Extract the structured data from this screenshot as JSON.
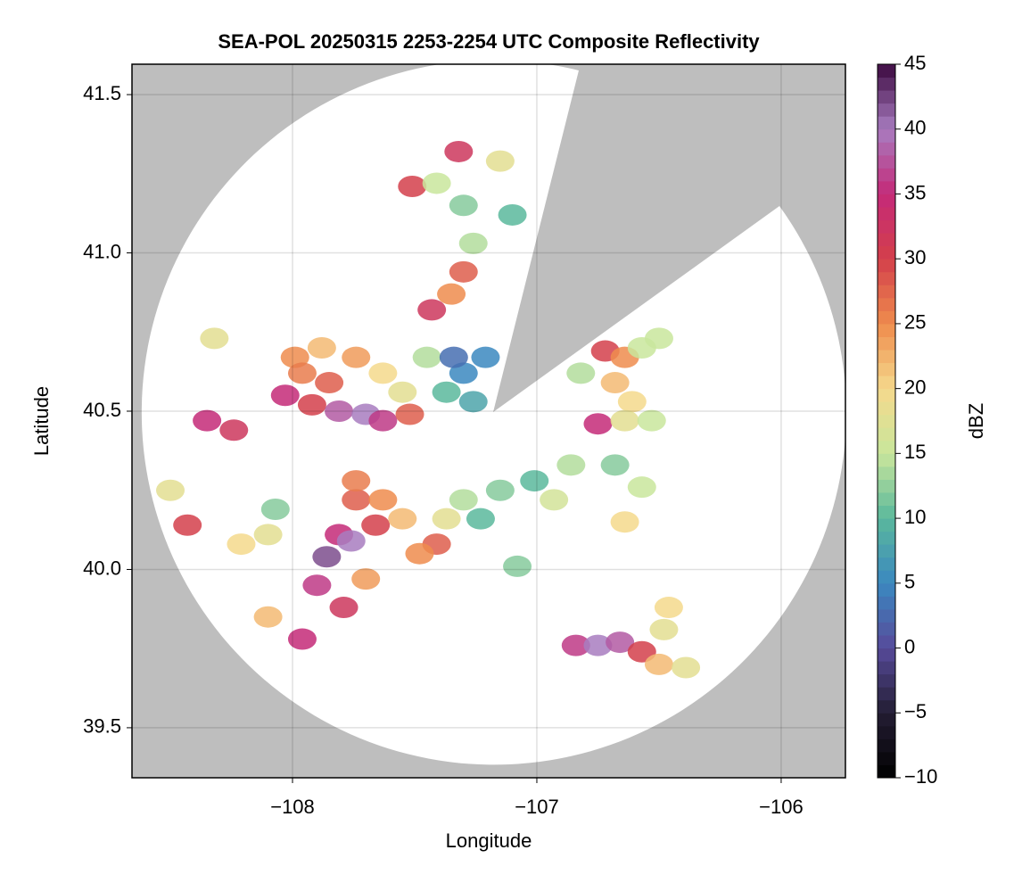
{
  "chart_data": {
    "type": "radar-composite",
    "title": "SEA-POL 20250315 2253-2254 UTC Composite Reflectivity",
    "x_label": "Longitude",
    "y_label": "Latitude",
    "colorbar_label": "dBZ",
    "xlim": [
      -108.657,
      -105.737
    ],
    "ylim": [
      39.342,
      41.596
    ],
    "xticks": [
      {
        "value": -108,
        "label": "−108"
      },
      {
        "value": -107,
        "label": "−107"
      },
      {
        "value": -106,
        "label": "−106"
      }
    ],
    "yticks": [
      39.5,
      {
        "value": 40.0,
        "label": "40.0"
      },
      40.5,
      {
        "value": 41.0,
        "label": "41.0"
      },
      41.5
    ],
    "clim": [
      -10,
      45
    ],
    "cticks": [
      {
        "value": -10,
        "label": "−10"
      },
      {
        "value": -5,
        "label": "−5"
      },
      0,
      5,
      10,
      15,
      20,
      25,
      30,
      35,
      40,
      45
    ],
    "colormap": [
      "#000000",
      "#231d33",
      "#574a9a",
      "#3b88c0",
      "#5ab89c",
      "#c9e69c",
      "#f5d98c",
      "#ef8c4d",
      "#d33f4b",
      "#c42a78",
      "#a87cc0",
      "#3c0a40"
    ],
    "background": "#bebebe",
    "grid": true,
    "x": [
      -107.99,
      -107.88,
      -107.74,
      -107.63,
      -107.55,
      -108.03,
      -107.92,
      -107.81,
      -107.7,
      -107.63,
      -107.52,
      -107.96,
      -107.85,
      -107.45,
      -107.37,
      -107.3,
      -107.26,
      -108.35,
      -108.24,
      -108.32,
      -107.32,
      -107.51,
      -107.41,
      -107.3,
      -107.26,
      -107.3,
      -107.43,
      -107.35,
      -107.15,
      -107.1,
      -107.34,
      -107.21,
      -106.72,
      -106.64,
      -106.57,
      -106.68,
      -106.61,
      -106.75,
      -106.64,
      -106.53,
      -106.82,
      -106.5,
      -107.15,
      -107.01,
      -106.93,
      -106.86,
      -107.3,
      -107.37,
      -107.41,
      -107.23,
      -107.08,
      -106.68,
      -106.57,
      -106.64,
      -107.74,
      -107.63,
      -107.81,
      -107.76,
      -107.86,
      -107.9,
      -107.66,
      -107.55,
      -107.74,
      -107.7,
      -107.79,
      -107.48,
      -108.1,
      -108.07,
      -108.43,
      -108.5,
      -108.1,
      -107.96,
      -108.21,
      -106.84,
      -106.75,
      -106.66,
      -106.57,
      -106.5,
      -106.39,
      -106.46,
      -106.48
    ],
    "y": [
      40.67,
      40.7,
      40.67,
      40.62,
      40.56,
      40.55,
      40.52,
      40.5,
      40.49,
      40.47,
      40.49,
      40.62,
      40.59,
      40.67,
      40.56,
      40.62,
      40.53,
      40.47,
      40.44,
      40.73,
      41.32,
      41.21,
      41.22,
      41.15,
      41.03,
      40.94,
      40.82,
      40.87,
      41.29,
      41.12,
      40.67,
      40.67,
      40.69,
      40.67,
      40.7,
      40.59,
      40.53,
      40.46,
      40.47,
      40.47,
      40.62,
      40.73,
      40.25,
      40.28,
      40.22,
      40.33,
      40.22,
      40.16,
      40.08,
      40.16,
      40.01,
      40.33,
      40.26,
      40.15,
      40.22,
      40.22,
      40.11,
      40.09,
      40.04,
      39.95,
      40.14,
      40.16,
      40.28,
      39.97,
      39.88,
      40.05,
      40.11,
      40.19,
      40.14,
      40.25,
      39.85,
      39.78,
      40.08,
      39.76,
      39.76,
      39.77,
      39.74,
      39.7,
      39.69,
      39.88,
      39.81
    ],
    "values": [
      25,
      22,
      24,
      20,
      18,
      35,
      30,
      38,
      40,
      36,
      28,
      26,
      28,
      14,
      10,
      5,
      8,
      35,
      32,
      18,
      32,
      30,
      15,
      12,
      14,
      28,
      32,
      25,
      18,
      10,
      3,
      5,
      30,
      25,
      15,
      22,
      20,
      35,
      18,
      15,
      14,
      15,
      12,
      10,
      16,
      14,
      14,
      18,
      28,
      10,
      12,
      12,
      15,
      20,
      28,
      25,
      35,
      40,
      42,
      36,
      30,
      22,
      26,
      24,
      32,
      25,
      18,
      12,
      30,
      18,
      22,
      35,
      20,
      36,
      40,
      38,
      30,
      22,
      18,
      20,
      18
    ]
  }
}
